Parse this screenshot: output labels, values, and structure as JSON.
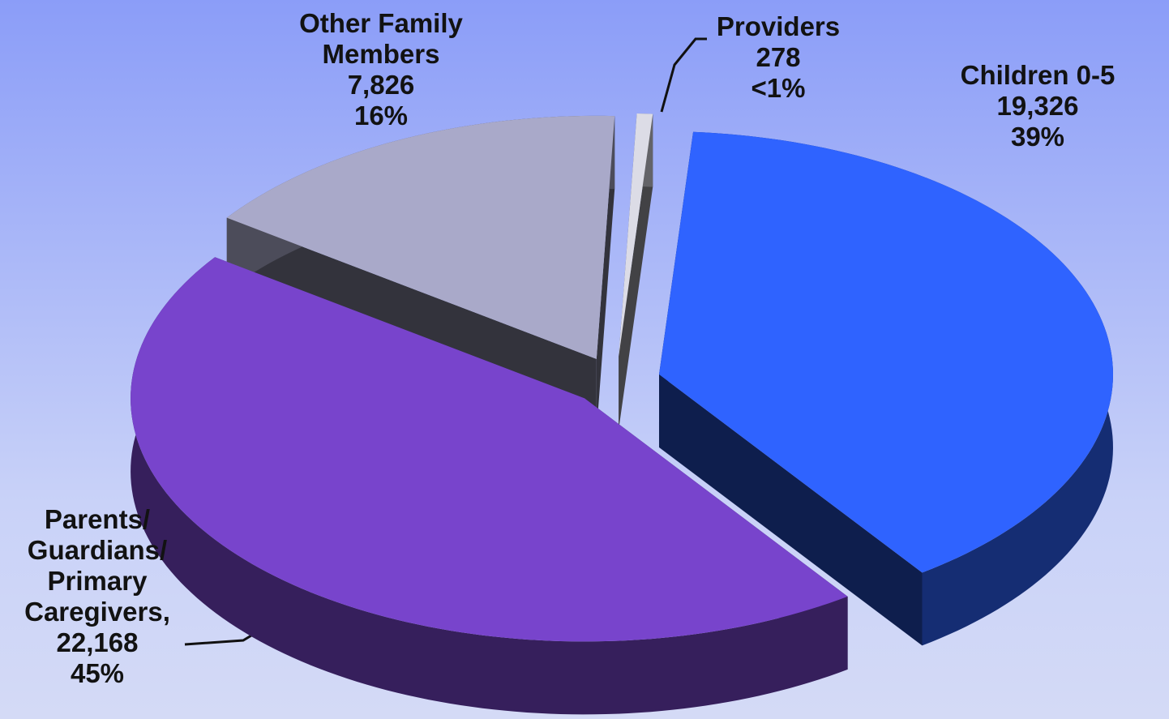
{
  "chart_data": {
    "type": "pie",
    "categories": [
      "Providers",
      "Children 0-5",
      "Parents/ Guardians/ Primary Caregivers,",
      "Other Family Members"
    ],
    "values": [
      278,
      19326,
      22168,
      7826
    ],
    "value_labels": [
      "278",
      "19,326",
      "22,168",
      "7,826"
    ],
    "percent_labels": [
      "<1%",
      "39%",
      "45%",
      "16%"
    ],
    "colors": [
      "#dcdce6",
      "#2f63ff",
      "#7844cc",
      "#a9a9c9"
    ]
  }
}
